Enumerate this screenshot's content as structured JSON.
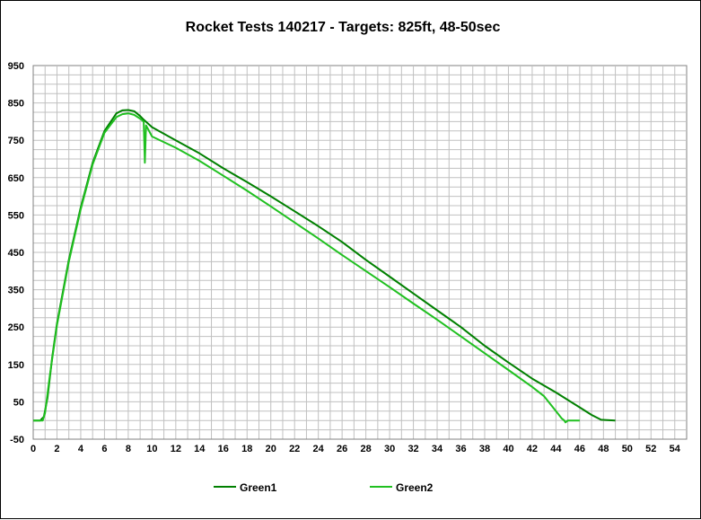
{
  "chart_data": {
    "type": "line",
    "title": "Rocket Tests 140217 - Targets: 825ft, 48-50sec",
    "xlabel": "",
    "ylabel": "",
    "xlim": [
      0,
      55
    ],
    "ylim": [
      -50,
      950
    ],
    "x_ticks": [
      0,
      2,
      4,
      6,
      8,
      10,
      12,
      14,
      16,
      18,
      20,
      22,
      24,
      26,
      28,
      30,
      32,
      34,
      36,
      38,
      40,
      42,
      44,
      46,
      48,
      50,
      52,
      54
    ],
    "y_ticks": [
      -50,
      50,
      150,
      250,
      350,
      450,
      550,
      650,
      750,
      850,
      950
    ],
    "grid": true,
    "legend_position": "bottom",
    "series": [
      {
        "name": "Green1",
        "color": "#008000",
        "points": [
          [
            0,
            0
          ],
          [
            0.6,
            0
          ],
          [
            0.9,
            10
          ],
          [
            1.2,
            60
          ],
          [
            1.6,
            170
          ],
          [
            2,
            260
          ],
          [
            3,
            430
          ],
          [
            4,
            570
          ],
          [
            5,
            690
          ],
          [
            6,
            775
          ],
          [
            7,
            822
          ],
          [
            7.5,
            830
          ],
          [
            8,
            831
          ],
          [
            8.5,
            828
          ],
          [
            9,
            815
          ],
          [
            9.3,
            805
          ],
          [
            10,
            785
          ],
          [
            12,
            750
          ],
          [
            14,
            715
          ],
          [
            16,
            675
          ],
          [
            18,
            638
          ],
          [
            20,
            600
          ],
          [
            22,
            560
          ],
          [
            24,
            520
          ],
          [
            26,
            478
          ],
          [
            28,
            430
          ],
          [
            30,
            385
          ],
          [
            32,
            340
          ],
          [
            34,
            295
          ],
          [
            36,
            250
          ],
          [
            38,
            200
          ],
          [
            40,
            155
          ],
          [
            42,
            112
          ],
          [
            44,
            75
          ],
          [
            46,
            35
          ],
          [
            47,
            15
          ],
          [
            47.8,
            2
          ],
          [
            49,
            0
          ]
        ]
      },
      {
        "name": "Green2",
        "color": "#20c020",
        "points": [
          [
            0,
            0
          ],
          [
            0.8,
            0
          ],
          [
            1,
            20
          ],
          [
            1.4,
            120
          ],
          [
            2,
            255
          ],
          [
            3,
            425
          ],
          [
            4,
            565
          ],
          [
            5,
            685
          ],
          [
            6,
            770
          ],
          [
            7,
            812
          ],
          [
            7.5,
            820
          ],
          [
            8,
            822
          ],
          [
            8.5,
            818
          ],
          [
            9,
            808
          ],
          [
            9.3,
            800
          ],
          [
            9.4,
            690
          ],
          [
            9.5,
            790
          ],
          [
            9.8,
            772
          ],
          [
            10,
            760
          ],
          [
            12,
            730
          ],
          [
            14,
            695
          ],
          [
            16,
            655
          ],
          [
            18,
            615
          ],
          [
            20,
            573
          ],
          [
            22,
            530
          ],
          [
            24,
            487
          ],
          [
            26,
            443
          ],
          [
            28,
            400
          ],
          [
            30,
            357
          ],
          [
            32,
            313
          ],
          [
            34,
            270
          ],
          [
            36,
            225
          ],
          [
            38,
            180
          ],
          [
            40,
            135
          ],
          [
            42,
            90
          ],
          [
            43,
            65
          ],
          [
            44,
            25
          ],
          [
            44.5,
            5
          ],
          [
            44.7,
            0
          ],
          [
            44.8,
            -5
          ],
          [
            45,
            0
          ],
          [
            46,
            0
          ]
        ]
      }
    ]
  }
}
